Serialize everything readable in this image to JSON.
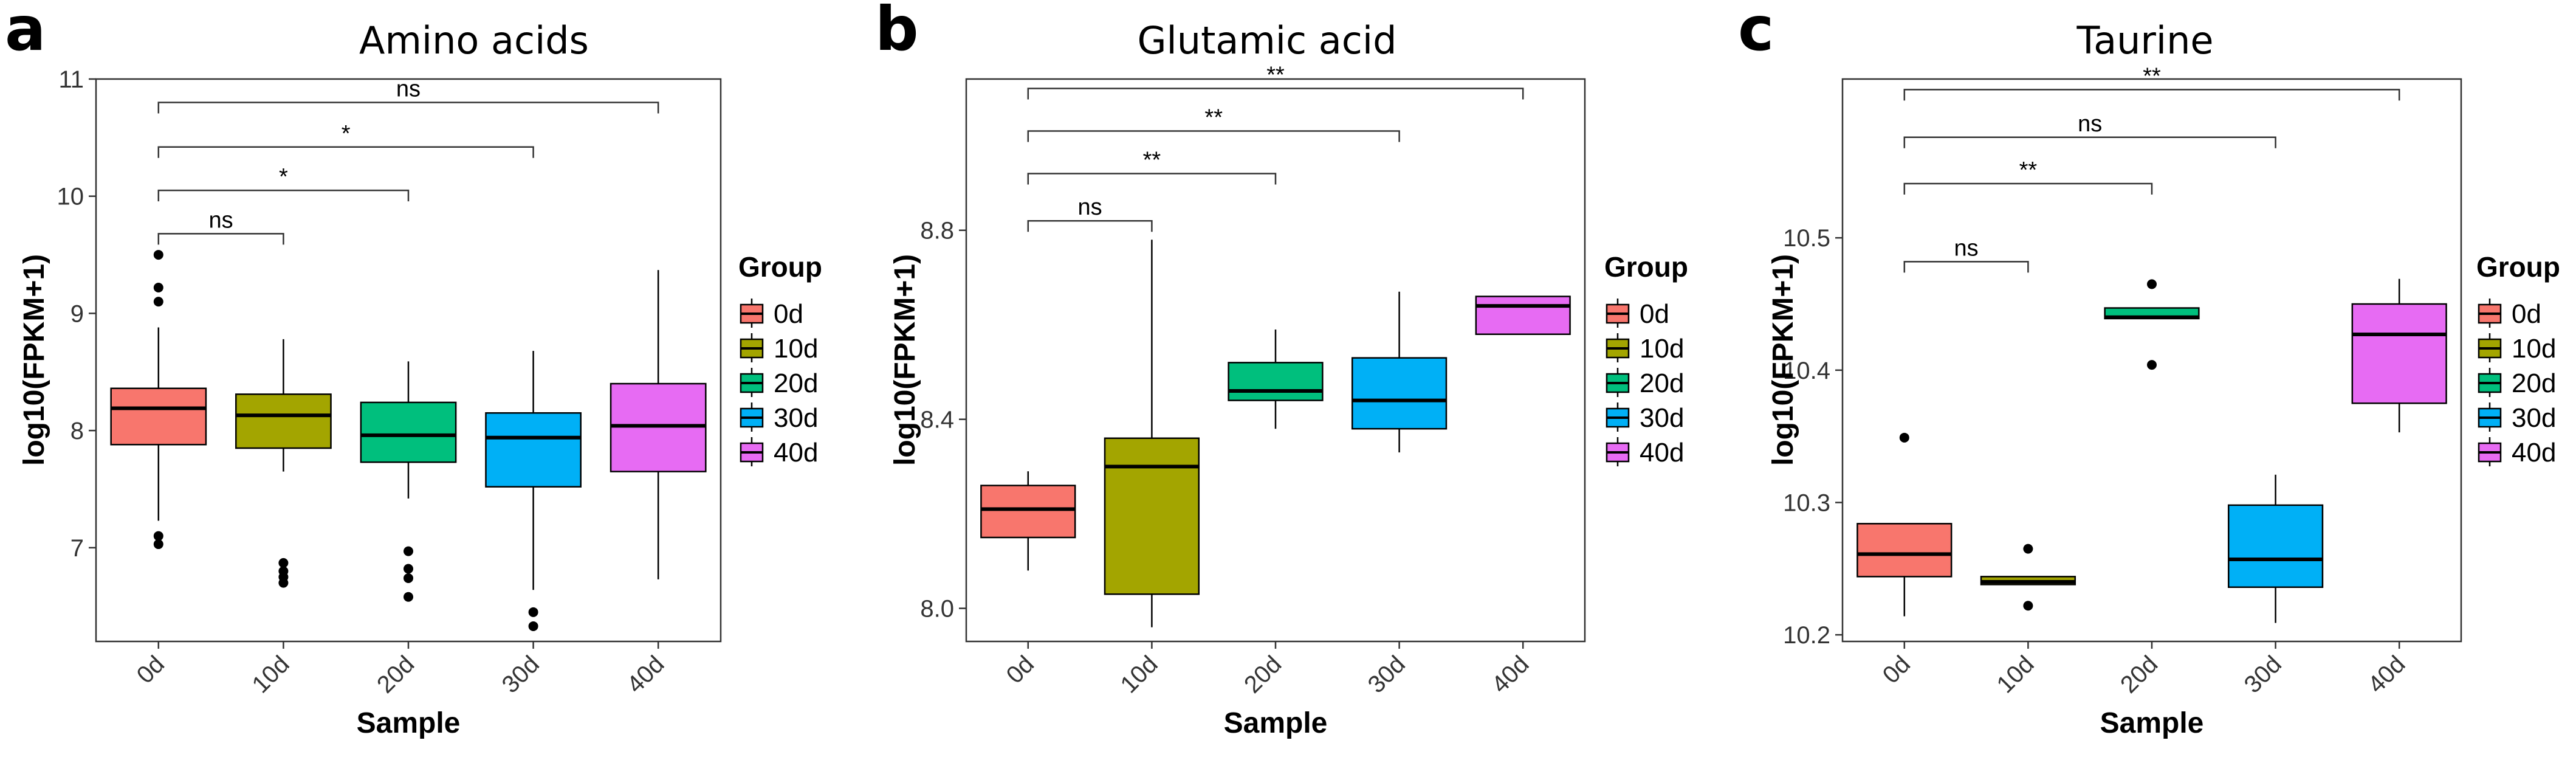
{
  "chart_data": [
    {
      "panel_letter": "a",
      "title": "Amino acids",
      "type": "box",
      "xlabel": "Sample",
      "ylabel": "log10(FPKM+1)",
      "ylim": [
        6.2,
        11.0
      ],
      "yticks": [
        7,
        8,
        9,
        10,
        11
      ],
      "ytick_labels": [
        "7",
        "8",
        "9",
        "10",
        "11"
      ],
      "categories": [
        "0d",
        "10d",
        "20d",
        "30d",
        "40d"
      ],
      "boxes": [
        {
          "group": "0d",
          "whisker_low": 7.23,
          "q1": 7.88,
          "median": 8.19,
          "q3": 8.36,
          "whisker_high": 8.88,
          "outliers": [
            7.03,
            7.1,
            9.1,
            9.22,
            9.5
          ]
        },
        {
          "group": "10d",
          "whisker_low": 7.65,
          "q1": 7.85,
          "median": 8.13,
          "q3": 8.31,
          "whisker_high": 8.78,
          "outliers": [
            6.7,
            6.75,
            6.8,
            6.87
          ]
        },
        {
          "group": "20d",
          "whisker_low": 7.42,
          "q1": 7.73,
          "median": 7.96,
          "q3": 8.24,
          "whisker_high": 8.59,
          "outliers": [
            6.58,
            6.74,
            6.82,
            6.97
          ]
        },
        {
          "group": "30d",
          "whisker_low": 6.64,
          "q1": 7.52,
          "median": 7.94,
          "q3": 8.15,
          "whisker_high": 8.68,
          "outliers": [
            6.33,
            6.45
          ]
        },
        {
          "group": "40d",
          "whisker_low": 6.73,
          "q1": 7.65,
          "median": 8.04,
          "q3": 8.4,
          "whisker_high": 9.37,
          "outliers": []
        }
      ],
      "comparisons": [
        {
          "from": "0d",
          "to": "10d",
          "label": "ns",
          "y": 9.68
        },
        {
          "from": "0d",
          "to": "20d",
          "label": "*",
          "y": 10.05
        },
        {
          "from": "0d",
          "to": "30d",
          "label": "*",
          "y": 10.42
        },
        {
          "from": "0d",
          "to": "40d",
          "label": "ns",
          "y": 10.8
        }
      ],
      "legend_title": "Group",
      "legend": [
        "0d",
        "10d",
        "20d",
        "30d",
        "40d"
      ]
    },
    {
      "panel_letter": "b",
      "title": "Glutamic acid",
      "type": "box",
      "xlabel": "Sample",
      "ylabel": "log10(FPKM+1)",
      "ylim": [
        7.93,
        9.12
      ],
      "yticks": [
        8.0,
        8.4,
        8.8
      ],
      "ytick_labels": [
        "8.0",
        "8.4",
        "8.8"
      ],
      "categories": [
        "0d",
        "10d",
        "20d",
        "30d",
        "40d"
      ],
      "boxes": [
        {
          "group": "0d",
          "whisker_low": 8.08,
          "q1": 8.15,
          "median": 8.21,
          "q3": 8.26,
          "whisker_high": 8.29,
          "outliers": []
        },
        {
          "group": "10d",
          "whisker_low": 7.96,
          "q1": 8.03,
          "median": 8.3,
          "q3": 8.36,
          "whisker_high": 8.78,
          "outliers": []
        },
        {
          "group": "20d",
          "whisker_low": 8.38,
          "q1": 8.44,
          "median": 8.46,
          "q3": 8.52,
          "whisker_high": 8.59,
          "outliers": []
        },
        {
          "group": "30d",
          "whisker_low": 8.33,
          "q1": 8.38,
          "median": 8.44,
          "q3": 8.53,
          "whisker_high": 8.67,
          "outliers": []
        },
        {
          "group": "40d",
          "whisker_low": 8.58,
          "q1": 8.58,
          "median": 8.64,
          "q3": 8.66,
          "whisker_high": 8.66,
          "outliers": []
        }
      ],
      "comparisons": [
        {
          "from": "0d",
          "to": "10d",
          "label": "ns",
          "y": 8.82
        },
        {
          "from": "0d",
          "to": "20d",
          "label": "**",
          "y": 8.92
        },
        {
          "from": "0d",
          "to": "30d",
          "label": "**",
          "y": 9.01
        },
        {
          "from": "0d",
          "to": "40d",
          "label": "**",
          "y": 9.1
        }
      ],
      "legend_title": "Group",
      "legend": [
        "0d",
        "10d",
        "20d",
        "30d",
        "40d"
      ]
    },
    {
      "panel_letter": "c",
      "title": "Taurine",
      "type": "box",
      "xlabel": "Sample",
      "ylabel": "log10(FPKM+1)",
      "ylim": [
        10.195,
        10.62
      ],
      "yticks": [
        10.2,
        10.3,
        10.4,
        10.5
      ],
      "ytick_labels": [
        "10.2",
        "10.3",
        "10.4",
        "10.5"
      ],
      "categories": [
        "0d",
        "10d",
        "20d",
        "30d",
        "40d"
      ],
      "boxes": [
        {
          "group": "0d",
          "whisker_low": 10.214,
          "q1": 10.244,
          "median": 10.261,
          "q3": 10.284,
          "whisker_high": 10.284,
          "outliers": [
            10.349
          ]
        },
        {
          "group": "10d",
          "whisker_low": 10.238,
          "q1": 10.238,
          "median": 10.24,
          "q3": 10.244,
          "whisker_high": 10.244,
          "outliers": [
            10.222,
            10.265
          ]
        },
        {
          "group": "20d",
          "whisker_low": 10.439,
          "q1": 10.439,
          "median": 10.44,
          "q3": 10.447,
          "whisker_high": 10.447,
          "outliers": [
            10.404,
            10.465
          ]
        },
        {
          "group": "30d",
          "whisker_low": 10.209,
          "q1": 10.236,
          "median": 10.257,
          "q3": 10.298,
          "whisker_high": 10.321,
          "outliers": []
        },
        {
          "group": "40d",
          "whisker_low": 10.353,
          "q1": 10.375,
          "median": 10.427,
          "q3": 10.45,
          "whisker_high": 10.469,
          "outliers": []
        }
      ],
      "comparisons": [
        {
          "from": "0d",
          "to": "10d",
          "label": "ns",
          "y": 10.482
        },
        {
          "from": "0d",
          "to": "20d",
          "label": "**",
          "y": 10.541
        },
        {
          "from": "0d",
          "to": "30d",
          "label": "ns",
          "y": 10.576
        },
        {
          "from": "0d",
          "to": "40d",
          "label": "**",
          "y": 10.612
        }
      ],
      "legend_title": "Group",
      "legend": [
        "0d",
        "10d",
        "20d",
        "30d",
        "40d"
      ]
    }
  ],
  "colors": {
    "0d": "#F8766D",
    "10d": "#A3A500",
    "20d": "#00BF7D",
    "30d": "#00B0F6",
    "40d": "#E76BF3"
  }
}
